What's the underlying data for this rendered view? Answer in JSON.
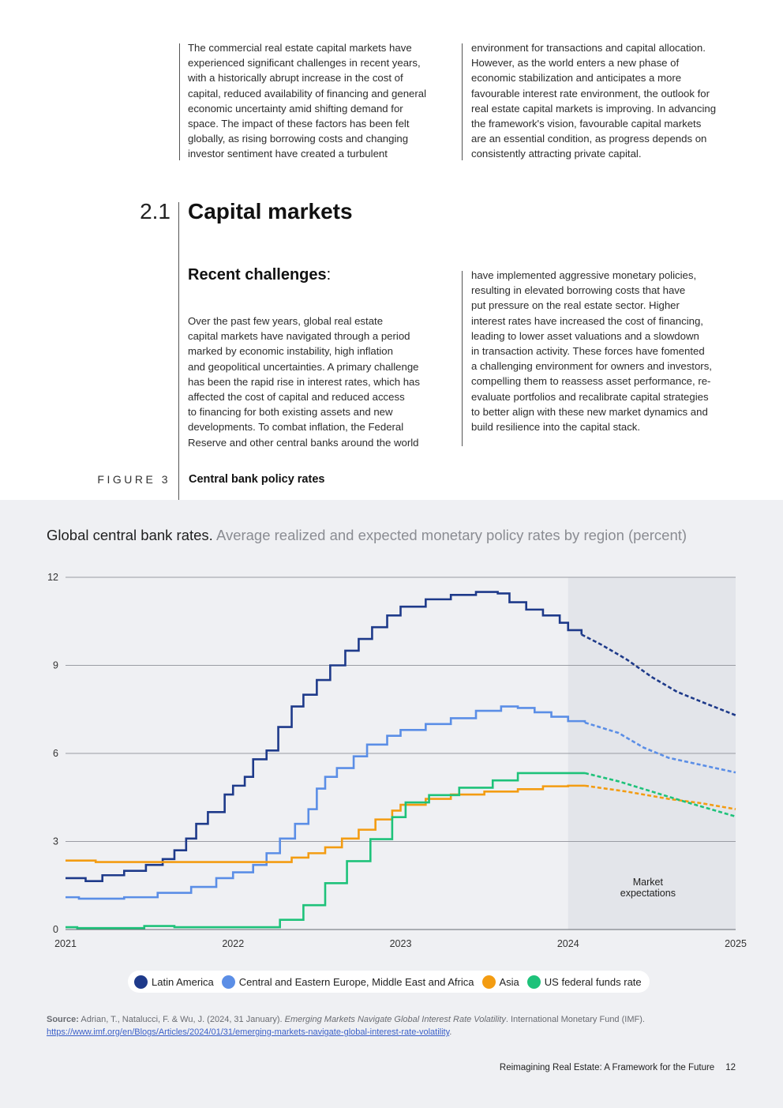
{
  "intro": {
    "col1": "The commercial real estate capital markets have\nexperienced significant challenges in recent years,\nwith a historically abrupt increase in the cost of\ncapital, reduced availability of financing and general\neconomic uncertainty amid shifting demand for\nspace. The impact of these factors has been felt\nglobally, as rising borrowing costs and changing\ninvestor sentiment have created a turbulent",
    "col2": "environment for transactions and capital allocation.\nHowever, as the world enters a new phase of\neconomic stabilization and anticipates a more\nfavourable interest rate environment, the outlook for\nreal estate capital markets is improving. In advancing\nthe framework's vision, favourable capital markets\nare an essential condition, as progress depends on\nconsistently attracting private capital."
  },
  "section": {
    "number": "2.1",
    "title": "Capital markets"
  },
  "subsection": {
    "heading": "Recent challenges",
    "heading_colon": ":",
    "col1": "Over the past few years, global real estate\ncapital markets have navigated through a period\nmarked by economic instability, high inflation\nand geopolitical uncertainties. A primary challenge\nhas been the rapid rise in interest rates, which has\naffected the cost of capital and reduced access\nto financing for both existing assets and new\ndevelopments. To combat inflation, the Federal\nReserve and other central banks around the world",
    "col2": "have implemented aggressive monetary policies,\nresulting in elevated borrowing costs that have\nput pressure on the real estate sector. Higher\ninterest rates have increased the cost of financing,\nleading to lower asset valuations and a slowdown\nin transaction activity. These forces have fomented\na challenging environment for owners and investors,\ncompelling them to reassess asset performance, re-\nevaluate portfolios and recalibrate capital strategies\nto better align with these new market dynamics and\nbuild resilience into the capital stack."
  },
  "figure": {
    "label": "FIGURE 3",
    "title": "Central bank policy rates"
  },
  "chart_data": {
    "type": "line",
    "title": "Global central bank rates.",
    "subtitle": "Average realized and expected monetary policy rates by region (percent)",
    "xlabel": "",
    "ylabel": "",
    "xlim": [
      2021,
      2025
    ],
    "ylim": [
      0,
      12
    ],
    "x_ticks": [
      "2021",
      "2022",
      "2023",
      "2024",
      "2025"
    ],
    "y_ticks": [
      "0",
      "3",
      "6",
      "9",
      "12"
    ],
    "grid": true,
    "forecast_start": 2024,
    "annotation": "Market\nexpectations",
    "legend_position": "bottom",
    "series": [
      {
        "name": "Latin America",
        "color": "#1e3a8a",
        "step": true,
        "points": [
          [
            2021.0,
            1.75
          ],
          [
            2021.12,
            1.65
          ],
          [
            2021.22,
            1.85
          ],
          [
            2021.35,
            2.0
          ],
          [
            2021.48,
            2.2
          ],
          [
            2021.58,
            2.4
          ],
          [
            2021.65,
            2.7
          ],
          [
            2021.72,
            3.1
          ],
          [
            2021.78,
            3.6
          ],
          [
            2021.85,
            4.0
          ],
          [
            2021.95,
            4.6
          ],
          [
            2022.0,
            4.9
          ],
          [
            2022.07,
            5.2
          ],
          [
            2022.12,
            5.8
          ],
          [
            2022.2,
            6.1
          ],
          [
            2022.27,
            6.9
          ],
          [
            2022.35,
            7.6
          ],
          [
            2022.42,
            8.0
          ],
          [
            2022.5,
            8.5
          ],
          [
            2022.58,
            9.0
          ],
          [
            2022.67,
            9.5
          ],
          [
            2022.75,
            9.9
          ],
          [
            2022.83,
            10.3
          ],
          [
            2022.92,
            10.7
          ],
          [
            2023.0,
            11.0
          ],
          [
            2023.15,
            11.25
          ],
          [
            2023.3,
            11.4
          ],
          [
            2023.45,
            11.5
          ],
          [
            2023.58,
            11.45
          ],
          [
            2023.65,
            11.15
          ],
          [
            2023.75,
            10.9
          ],
          [
            2023.85,
            10.7
          ],
          [
            2023.95,
            10.45
          ],
          [
            2024.0,
            10.2
          ],
          [
            2024.08,
            10.05
          ],
          [
            2024.2,
            9.7
          ],
          [
            2024.35,
            9.2
          ],
          [
            2024.5,
            8.6
          ],
          [
            2024.65,
            8.1
          ],
          [
            2024.8,
            7.75
          ],
          [
            2025.0,
            7.3
          ]
        ]
      },
      {
        "name": "Central and Eastern Europe, Middle East and Africa",
        "color": "#5b8ee6",
        "step": true,
        "points": [
          [
            2021.0,
            1.1
          ],
          [
            2021.08,
            1.05
          ],
          [
            2021.35,
            1.1
          ],
          [
            2021.55,
            1.25
          ],
          [
            2021.75,
            1.45
          ],
          [
            2021.9,
            1.75
          ],
          [
            2022.0,
            1.95
          ],
          [
            2022.12,
            2.2
          ],
          [
            2022.2,
            2.6
          ],
          [
            2022.28,
            3.1
          ],
          [
            2022.37,
            3.6
          ],
          [
            2022.45,
            4.1
          ],
          [
            2022.5,
            4.8
          ],
          [
            2022.55,
            5.2
          ],
          [
            2022.62,
            5.5
          ],
          [
            2022.72,
            5.9
          ],
          [
            2022.8,
            6.3
          ],
          [
            2022.92,
            6.6
          ],
          [
            2023.0,
            6.8
          ],
          [
            2023.15,
            7.0
          ],
          [
            2023.3,
            7.2
          ],
          [
            2023.45,
            7.45
          ],
          [
            2023.6,
            7.6
          ],
          [
            2023.7,
            7.55
          ],
          [
            2023.8,
            7.4
          ],
          [
            2023.9,
            7.25
          ],
          [
            2024.0,
            7.1
          ],
          [
            2024.1,
            7.05
          ],
          [
            2024.3,
            6.7
          ],
          [
            2024.45,
            6.2
          ],
          [
            2024.6,
            5.85
          ],
          [
            2024.8,
            5.6
          ],
          [
            2025.0,
            5.35
          ]
        ]
      },
      {
        "name": "Asia",
        "color": "#f39c12",
        "step": true,
        "points": [
          [
            2021.0,
            2.35
          ],
          [
            2021.18,
            2.3
          ],
          [
            2021.5,
            2.3
          ],
          [
            2021.8,
            2.3
          ],
          [
            2022.0,
            2.3
          ],
          [
            2022.15,
            2.3
          ],
          [
            2022.28,
            2.3
          ],
          [
            2022.35,
            2.45
          ],
          [
            2022.45,
            2.6
          ],
          [
            2022.55,
            2.8
          ],
          [
            2022.65,
            3.1
          ],
          [
            2022.75,
            3.4
          ],
          [
            2022.85,
            3.75
          ],
          [
            2022.95,
            4.05
          ],
          [
            2023.0,
            4.25
          ],
          [
            2023.15,
            4.45
          ],
          [
            2023.3,
            4.6
          ],
          [
            2023.5,
            4.7
          ],
          [
            2023.7,
            4.78
          ],
          [
            2023.85,
            4.88
          ],
          [
            2024.0,
            4.9
          ],
          [
            2024.1,
            4.9
          ],
          [
            2024.35,
            4.7
          ],
          [
            2024.6,
            4.45
          ],
          [
            2024.8,
            4.3
          ],
          [
            2025.0,
            4.1
          ]
        ]
      },
      {
        "name": "US federal funds rate",
        "color": "#1ec27a",
        "step": true,
        "points": [
          [
            2021.0,
            0.08
          ],
          [
            2021.07,
            0.05
          ],
          [
            2021.2,
            0.05
          ],
          [
            2021.35,
            0.05
          ],
          [
            2021.47,
            0.12
          ],
          [
            2021.65,
            0.08
          ],
          [
            2022.0,
            0.08
          ],
          [
            2022.14,
            0.08
          ],
          [
            2022.28,
            0.33
          ],
          [
            2022.42,
            0.83
          ],
          [
            2022.55,
            1.58
          ],
          [
            2022.68,
            2.33
          ],
          [
            2022.82,
            3.08
          ],
          [
            2022.95,
            3.83
          ],
          [
            2023.03,
            4.33
          ],
          [
            2023.17,
            4.58
          ],
          [
            2023.35,
            4.83
          ],
          [
            2023.55,
            5.08
          ],
          [
            2023.7,
            5.33
          ],
          [
            2023.95,
            5.33
          ],
          [
            2024.1,
            5.33
          ],
          [
            2024.3,
            5.05
          ],
          [
            2024.5,
            4.7
          ],
          [
            2024.7,
            4.35
          ],
          [
            2024.85,
            4.1
          ],
          [
            2025.0,
            3.85
          ]
        ]
      }
    ]
  },
  "source": {
    "label": "Source:",
    "authors": "Adrian, T., Natalucci, F. & Wu, J. (2024, 31 January).",
    "title": "Emerging Markets Navigate Global Interest Rate Volatility",
    "publisher": ". International Monetary Fund (IMF).",
    "url": "https://www.imf.org/en/Blogs/Articles/2024/01/31/emerging-markets-navigate-global-interest-rate-volatility",
    "url_suffix": "."
  },
  "footer": {
    "title_bold": "Reimagining Real Estate:",
    "title_rest": " A Framework for the Future",
    "page": "12"
  }
}
